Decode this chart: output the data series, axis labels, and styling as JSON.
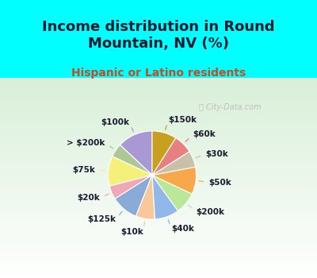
{
  "title": "Income distribution in Round\nMountain, NV (%)",
  "subtitle": "Hispanic or Latino residents",
  "labels": [
    "$100k",
    "> $200k",
    "$75k",
    "$20k",
    "$125k",
    "$10k",
    "$40k",
    "$200k",
    "$50k",
    "$30k",
    "$60k",
    "$150k"
  ],
  "sizes": [
    13,
    5,
    11,
    5,
    10,
    7,
    9,
    8,
    10,
    6,
    7,
    9
  ],
  "colors": [
    "#a899d4",
    "#adc895",
    "#f5f07a",
    "#f0a8b8",
    "#8aaad8",
    "#f8c89a",
    "#90b8e8",
    "#b8e898",
    "#f8a848",
    "#c8c0a8",
    "#e88080",
    "#c8a020"
  ],
  "bg_top": "#00ffff",
  "bg_bottom": "#c8ecd8",
  "watermark": "City-Data.com",
  "title_color": "#1a1a2e",
  "subtitle_color": "#d04820",
  "label_color": "#1a1a2e",
  "title_fontsize": 13,
  "subtitle_fontsize": 10,
  "label_fontsize": 7.5
}
